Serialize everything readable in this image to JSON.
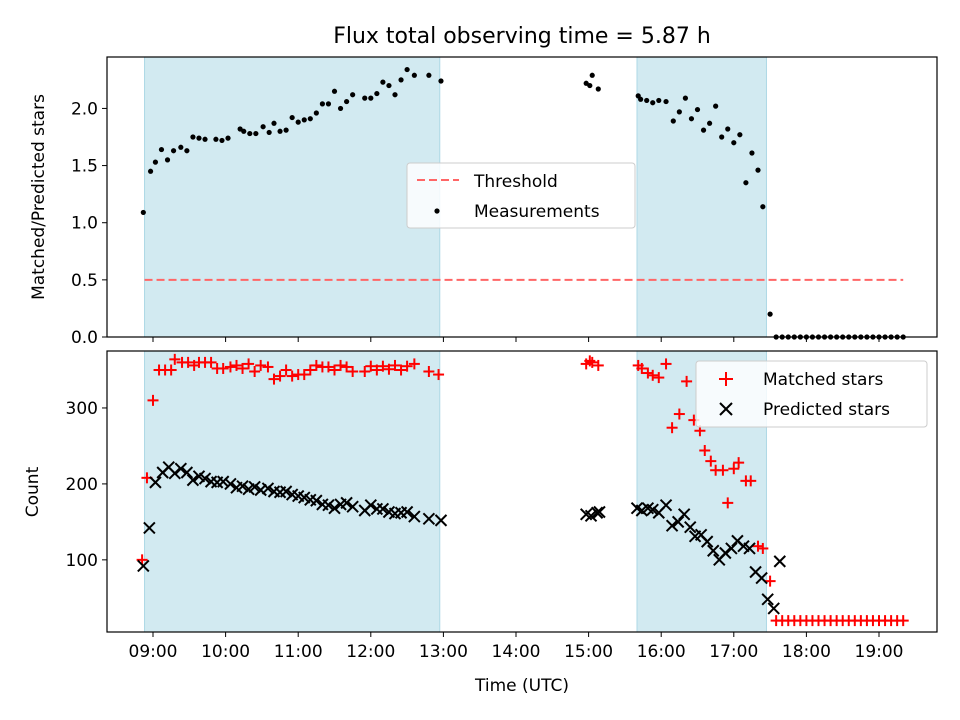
{
  "chart_data": {
    "type": "scatter",
    "title": "Flux total observing time = 5.87 h",
    "xlabel": "Time (UTC)",
    "x_ticks": [
      "09:00",
      "10:00",
      "11:00",
      "12:00",
      "13:00",
      "14:00",
      "15:00",
      "16:00",
      "17:00",
      "18:00",
      "19:00"
    ],
    "shaded_intervals": [
      [
        "08:53",
        "12:57"
      ],
      [
        "15:40",
        "17:27"
      ]
    ],
    "shade_color": "#add8e6",
    "top": {
      "ylabel": "Matched/Predicted stars",
      "ylim": [
        0,
        2.45
      ],
      "yticks": [
        "0.0",
        "0.5",
        "1.0",
        "1.5",
        "2.0"
      ],
      "legend": {
        "threshold_label": "Threshold",
        "measurements_label": "Measurements",
        "position": "center"
      },
      "threshold": {
        "value": 0.5,
        "x_start": "08:53",
        "x_end": "19:20",
        "color": "#ff6666"
      },
      "measurements": {
        "x": [
          "08:52",
          "08:58",
          "09:02",
          "09:07",
          "09:12",
          "09:17",
          "09:23",
          "09:28",
          "09:33",
          "09:38",
          "09:43",
          "09:52",
          "09:57",
          "10:02",
          "10:12",
          "10:15",
          "10:20",
          "10:25",
          "10:31",
          "10:36",
          "10:40",
          "10:45",
          "10:50",
          "10:55",
          "11:00",
          "11:05",
          "11:10",
          "11:15",
          "11:20",
          "11:25",
          "11:30",
          "11:35",
          "11:40",
          "11:45",
          "11:55",
          "12:00",
          "12:05",
          "12:10",
          "12:15",
          "12:20",
          "12:25",
          "12:30",
          "12:36",
          "12:48",
          "12:58",
          "14:58",
          "15:01",
          "15:03",
          "15:08",
          "15:41",
          "15:43",
          "15:48",
          "15:53",
          "15:58",
          "16:04",
          "16:10",
          "16:15",
          "16:20",
          "16:25",
          "16:30",
          "16:35",
          "16:40",
          "16:45",
          "16:50",
          "16:55",
          "17:00",
          "17:05",
          "17:10",
          "17:15",
          "17:20",
          "17:24",
          "17:30",
          "17:35",
          "17:40",
          "17:45",
          "17:50",
          "17:55",
          "18:00",
          "18:05",
          "18:10",
          "18:15",
          "18:20",
          "18:25",
          "18:30",
          "18:35",
          "18:40",
          "18:45",
          "18:50",
          "18:55",
          "19:00",
          "19:05",
          "19:10",
          "19:15",
          "19:20"
        ],
        "y": [
          1.09,
          1.45,
          1.53,
          1.64,
          1.55,
          1.63,
          1.66,
          1.63,
          1.75,
          1.74,
          1.73,
          1.73,
          1.72,
          1.74,
          1.82,
          1.8,
          1.78,
          1.78,
          1.84,
          1.79,
          1.87,
          1.8,
          1.81,
          1.92,
          1.88,
          1.9,
          1.91,
          1.96,
          2.04,
          2.04,
          2.15,
          2.0,
          2.06,
          2.12,
          2.09,
          2.09,
          2.13,
          2.23,
          2.2,
          2.12,
          2.25,
          2.34,
          2.29,
          2.29,
          2.24,
          2.22,
          2.2,
          2.29,
          2.17,
          2.11,
          2.08,
          2.07,
          2.05,
          2.07,
          2.06,
          1.89,
          1.97,
          2.09,
          1.91,
          1.99,
          1.81,
          1.87,
          2.02,
          1.75,
          1.82,
          1.7,
          1.77,
          1.35,
          1.61,
          1.46,
          1.14,
          0.2,
          0,
          0,
          0,
          0,
          0,
          0,
          0,
          0,
          0,
          0,
          0,
          0,
          0,
          0,
          0,
          0,
          0,
          0,
          0,
          0,
          0,
          0
        ]
      }
    },
    "bottom": {
      "ylabel": "Count",
      "ylim": [
        5,
        375
      ],
      "yticks": [
        "100",
        "200",
        "300"
      ],
      "legend": {
        "matched_label": "Matched stars",
        "predicted_label": "Predicted stars",
        "position": "upper right"
      },
      "matched": {
        "color": "#ff0000",
        "x": [
          "08:51",
          "08:55",
          "09:00",
          "09:05",
          "09:10",
          "09:15",
          "09:18",
          "09:24",
          "09:29",
          "09:34",
          "09:38",
          "09:43",
          "09:48",
          "09:53",
          "09:58",
          "10:04",
          "10:09",
          "10:14",
          "10:19",
          "10:24",
          "10:29",
          "10:35",
          "10:40",
          "10:45",
          "10:50",
          "10:55",
          "11:00",
          "11:05",
          "11:10",
          "11:15",
          "11:20",
          "11:25",
          "11:30",
          "11:35",
          "11:40",
          "11:45",
          "11:55",
          "12:00",
          "12:05",
          "12:10",
          "12:15",
          "12:20",
          "12:25",
          "12:30",
          "12:36",
          "12:48",
          "12:56",
          "14:58",
          "15:01",
          "15:03",
          "15:08",
          "15:41",
          "15:44",
          "15:49",
          "15:53",
          "15:58",
          "16:04",
          "16:09",
          "16:15",
          "16:21",
          "16:27",
          "16:32",
          "16:36",
          "16:41",
          "16:45",
          "16:51",
          "16:55",
          "17:00",
          "17:04",
          "17:10",
          "17:14",
          "17:20",
          "17:24",
          "17:30",
          "17:35",
          "17:40",
          "17:45",
          "17:50",
          "17:55",
          "18:00",
          "18:05",
          "18:10",
          "18:15",
          "18:20",
          "18:25",
          "18:30",
          "18:35",
          "18:40",
          "18:45",
          "18:50",
          "18:55",
          "19:00",
          "19:05",
          "19:10",
          "19:15",
          "19:20"
        ],
        "y": [
          100,
          208,
          310,
          350,
          350,
          350,
          364,
          360,
          360,
          356,
          360,
          360,
          360,
          352,
          352,
          354,
          356,
          352,
          358,
          348,
          356,
          354,
          338,
          342,
          350,
          342,
          344,
          344,
          350,
          356,
          354,
          354,
          350,
          356,
          354,
          348,
          348,
          355,
          350,
          355,
          351,
          356,
          350,
          355,
          358,
          348,
          344,
          358,
          362,
          360,
          356,
          356,
          352,
          346,
          343,
          340,
          358,
          274,
          292,
          335,
          284,
          270,
          244,
          230,
          218,
          218,
          175,
          220,
          228,
          204,
          204,
          118,
          115,
          72,
          20,
          20,
          20,
          20,
          20,
          20,
          20,
          20,
          20,
          20,
          20,
          20,
          20,
          20,
          20,
          20,
          20,
          20,
          20,
          20,
          20,
          20
        ]
      },
      "predicted": {
        "color": "#000000",
        "x": [
          "08:52",
          "08:57",
          "09:02",
          "09:08",
          "09:13",
          "09:18",
          "09:23",
          "09:28",
          "09:33",
          "09:38",
          "09:43",
          "09:48",
          "09:53",
          "09:58",
          "10:04",
          "10:09",
          "10:14",
          "10:19",
          "10:24",
          "10:29",
          "10:35",
          "10:40",
          "10:45",
          "10:50",
          "10:55",
          "11:00",
          "11:05",
          "11:10",
          "11:15",
          "11:20",
          "11:25",
          "11:30",
          "11:35",
          "11:40",
          "11:45",
          "11:55",
          "12:00",
          "12:05",
          "12:10",
          "12:15",
          "12:20",
          "12:25",
          "12:30",
          "12:36",
          "12:48",
          "12:58",
          "14:58",
          "15:02",
          "15:07",
          "15:09",
          "15:40",
          "15:44",
          "15:49",
          "15:53",
          "15:58",
          "16:04",
          "16:09",
          "16:14",
          "16:19",
          "16:24",
          "16:28",
          "16:33",
          "16:38",
          "16:43",
          "16:48",
          "16:53",
          "16:58",
          "17:03",
          "17:08",
          "17:13",
          "17:18",
          "17:23",
          "17:28",
          "17:33",
          "17:38"
        ],
        "y": [
          92,
          142,
          202,
          215,
          222,
          214,
          220,
          215,
          205,
          210,
          207,
          203,
          202,
          203,
          200,
          195,
          197,
          193,
          196,
          192,
          194,
          190,
          189,
          190,
          186,
          184,
          182,
          179,
          178,
          173,
          172,
          168,
          173,
          175,
          170,
          165,
          172,
          167,
          167,
          163,
          161,
          162,
          163,
          157,
          154,
          152,
          160,
          158,
          162,
          163,
          168,
          165,
          168,
          166,
          162,
          172,
          145,
          150,
          160,
          143,
          131,
          133,
          124,
          112,
          100,
          109,
          115,
          125,
          118,
          115,
          84,
          76,
          48,
          36,
          98
        ]
      }
    }
  }
}
